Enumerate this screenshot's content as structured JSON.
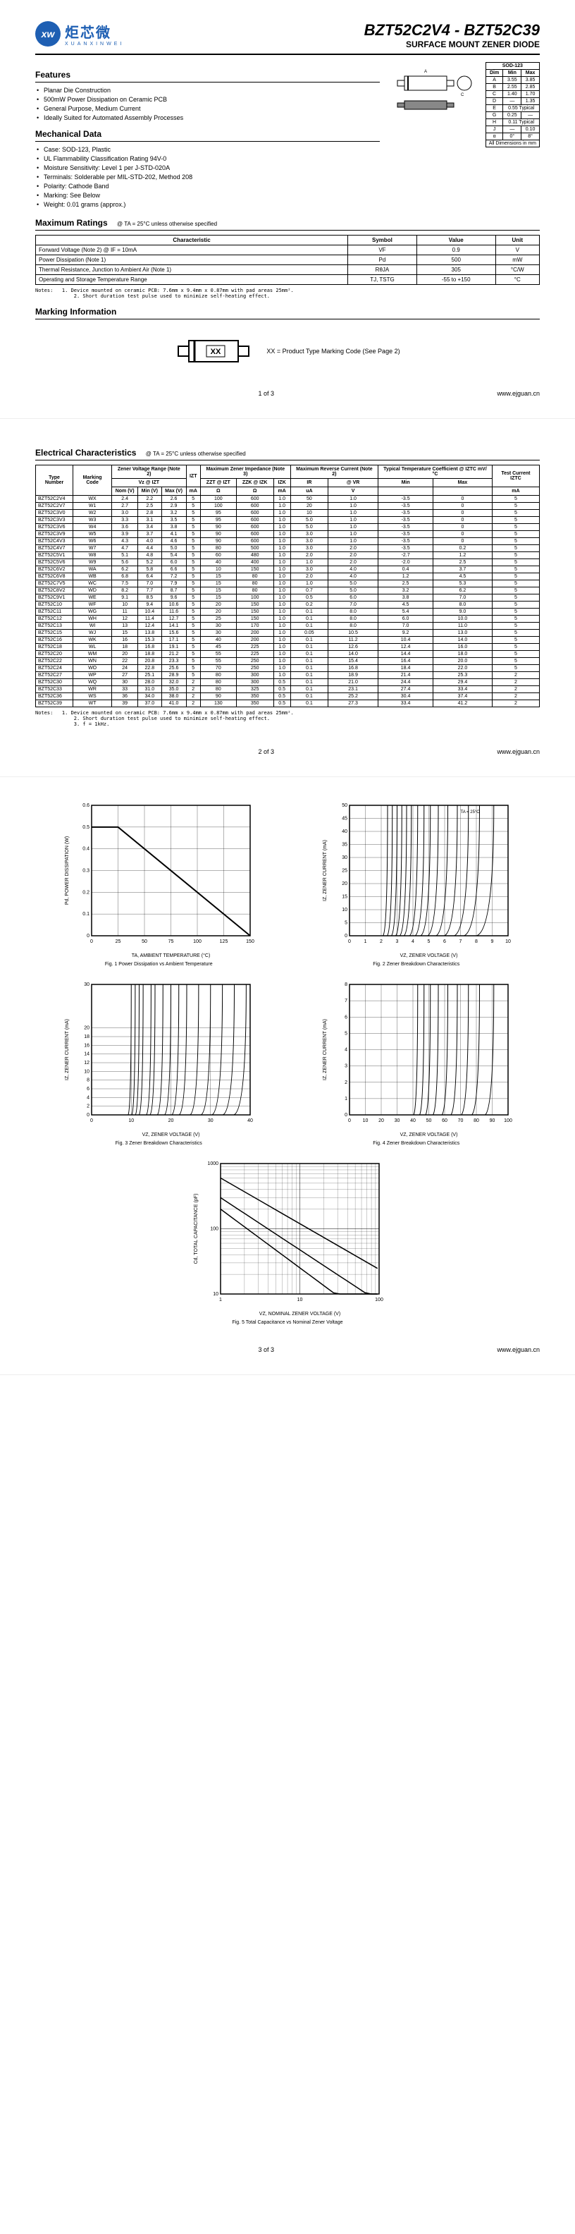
{
  "header": {
    "logo_cn": "炬芯微",
    "logo_en": "XUANXINWEI",
    "logo_mark": "xw",
    "part": "BZT52C2V4 - BZT52C39",
    "subtitle": "SURFACE MOUNT ZENER DIODE"
  },
  "sections": {
    "features": "Features",
    "mechanical": "Mechanical Data",
    "max_ratings": "Maximum Ratings",
    "marking": "Marking Information",
    "electrical": "Electrical Characteristics"
  },
  "features": [
    "Planar Die Construction",
    "500mW Power Dissipation on Ceramic PCB",
    "General Purpose, Medium Current",
    "Ideally Suited for Automated Assembly Processes"
  ],
  "mechanical": [
    "Case: SOD-123, Plastic",
    "UL Flammability Classification Rating 94V-0",
    "Moisture Sensitivity: Level 1 per J-STD-020A",
    "Terminals: Solderable per MIL-STD-202, Method 208",
    "Polarity: Cathode Band",
    "Marking: See Below",
    "Weight: 0.01 grams (approx.)"
  ],
  "sod": {
    "title": "SOD-123",
    "headers": [
      "Dim",
      "Min",
      "Max"
    ],
    "rows": [
      [
        "A",
        "3.55",
        "3.85"
      ],
      [
        "B",
        "2.55",
        "2.85"
      ],
      [
        "C",
        "1.40",
        "1.70"
      ],
      [
        "D",
        "—",
        "1.35"
      ],
      [
        "E",
        "0.55 Typical",
        ""
      ],
      [
        "G",
        "0.25",
        "—"
      ],
      [
        "H",
        "0.11 Typical",
        ""
      ],
      [
        "J",
        "—",
        "0.10"
      ],
      [
        "α",
        "0°",
        "8°"
      ]
    ],
    "footer": "All Dimensions in mm"
  },
  "max_ratings": {
    "cond": "@ TA = 25°C unless otherwise specified",
    "headers": [
      "Characteristic",
      "Symbol",
      "Value",
      "Unit"
    ],
    "rows": [
      [
        "Forward Voltage (Note 2)   @ IF = 10mA",
        "VF",
        "0.9",
        "V"
      ],
      [
        "Power Dissipation (Note 1)",
        "Pd",
        "500",
        "mW"
      ],
      [
        "Thermal Resistance, Junction to Ambient Air (Note 1)",
        "RθJA",
        "305",
        "°C/W"
      ],
      [
        "Operating and Storage Temperature Range",
        "TJ, TSTG",
        "-55 to +150",
        "°C"
      ]
    ],
    "notes": "Notes:   1. Device mounted on ceramic PCB: 7.6mm x 9.4mm x 0.87mm with pad areas 25mm².\n             2. Short duration test pulse used to minimize self-heating effect."
  },
  "marking_text": "XX = Product Type Marking Code (See Page 2)",
  "marking_code": "XX",
  "electrical": {
    "cond": "@ TA = 25°C unless otherwise specified",
    "group_headers": [
      "Type Number",
      "Marking Code",
      "Zener Voltage Range (Note 2)",
      "",
      "Maximum Zener Impedance (Note 3)",
      "",
      "",
      "Maximum Reverse Current (Note 2)",
      "",
      "Typical Temperature Coefficient @ IZTC mV/°C",
      "",
      "Test Current IZTC"
    ],
    "sub_headers": [
      "",
      "",
      "Vz @ IZT",
      "",
      "IZT",
      "ZZT @ IZT",
      "ZZK @ IZK",
      "IZK",
      "IR",
      "@ VR",
      "Min",
      "Max",
      ""
    ],
    "unit_headers": [
      "",
      "",
      "Nom (V)",
      "Min (V)",
      "Max (V)",
      "mA",
      "Ω",
      "Ω",
      "mA",
      "uA",
      "V",
      "",
      "",
      "mA"
    ],
    "rows": [
      [
        "BZT52C2V4",
        "WX",
        "2.4",
        "2.2",
        "2.6",
        "5",
        "100",
        "600",
        "1.0",
        "50",
        "1.0",
        "-3.5",
        "0",
        "5"
      ],
      [
        "BZT52C2V7",
        "W1",
        "2.7",
        "2.5",
        "2.9",
        "5",
        "100",
        "600",
        "1.0",
        "20",
        "1.0",
        "-3.5",
        "0",
        "5"
      ],
      [
        "BZT52C3V0",
        "W2",
        "3.0",
        "2.8",
        "3.2",
        "5",
        "95",
        "600",
        "1.0",
        "10",
        "1.0",
        "-3.5",
        "0",
        "5"
      ],
      [
        "BZT52C3V3",
        "W3",
        "3.3",
        "3.1",
        "3.5",
        "5",
        "95",
        "600",
        "1.0",
        "5.0",
        "1.0",
        "-3.5",
        "0",
        "5"
      ],
      [
        "BZT52C3V6",
        "W4",
        "3.6",
        "3.4",
        "3.8",
        "5",
        "90",
        "600",
        "1.0",
        "5.0",
        "1.0",
        "-3.5",
        "0",
        "5"
      ],
      [
        "BZT52C3V9",
        "W5",
        "3.9",
        "3.7",
        "4.1",
        "5",
        "90",
        "600",
        "1.0",
        "3.0",
        "1.0",
        "-3.5",
        "0",
        "5"
      ],
      [
        "BZT52C4V3",
        "W6",
        "4.3",
        "4.0",
        "4.6",
        "5",
        "90",
        "600",
        "1.0",
        "3.0",
        "1.0",
        "-3.5",
        "0",
        "5"
      ],
      [
        "BZT52C4V7",
        "W7",
        "4.7",
        "4.4",
        "5.0",
        "5",
        "80",
        "500",
        "1.0",
        "3.0",
        "2.0",
        "-3.5",
        "0.2",
        "5"
      ],
      [
        "BZT52C5V1",
        "W8",
        "5.1",
        "4.8",
        "5.4",
        "5",
        "60",
        "480",
        "1.0",
        "2.0",
        "2.0",
        "-2.7",
        "1.2",
        "5"
      ],
      [
        "BZT52C5V6",
        "W9",
        "5.6",
        "5.2",
        "6.0",
        "5",
        "40",
        "400",
        "1.0",
        "1.0",
        "2.0",
        "-2.0",
        "2.5",
        "5"
      ],
      [
        "BZT52C6V2",
        "WA",
        "6.2",
        "5.8",
        "6.6",
        "5",
        "10",
        "150",
        "1.0",
        "3.0",
        "4.0",
        "0.4",
        "3.7",
        "5"
      ],
      [
        "BZT52C6V8",
        "WB",
        "6.8",
        "6.4",
        "7.2",
        "5",
        "15",
        "80",
        "1.0",
        "2.0",
        "4.0",
        "1.2",
        "4.5",
        "5"
      ],
      [
        "BZT52C7V5",
        "WC",
        "7.5",
        "7.0",
        "7.9",
        "5",
        "15",
        "80",
        "1.0",
        "1.0",
        "5.0",
        "2.5",
        "5.3",
        "5"
      ],
      [
        "BZT52C8V2",
        "WD",
        "8.2",
        "7.7",
        "8.7",
        "5",
        "15",
        "80",
        "1.0",
        "0.7",
        "5.0",
        "3.2",
        "6.2",
        "5"
      ],
      [
        "BZT52C9V1",
        "WE",
        "9.1",
        "8.5",
        "9.6",
        "5",
        "15",
        "100",
        "1.0",
        "0.5",
        "6.0",
        "3.8",
        "7.0",
        "5"
      ],
      [
        "BZT52C10",
        "WF",
        "10",
        "9.4",
        "10.6",
        "5",
        "20",
        "150",
        "1.0",
        "0.2",
        "7.0",
        "4.5",
        "8.0",
        "5"
      ],
      [
        "BZT52C11",
        "WG",
        "11",
        "10.4",
        "11.6",
        "5",
        "20",
        "150",
        "1.0",
        "0.1",
        "8.0",
        "5.4",
        "9.0",
        "5"
      ],
      [
        "BZT52C12",
        "WH",
        "12",
        "11.4",
        "12.7",
        "5",
        "25",
        "150",
        "1.0",
        "0.1",
        "8.0",
        "6.0",
        "10.0",
        "5"
      ],
      [
        "BZT52C13",
        "WI",
        "13",
        "12.4",
        "14.1",
        "5",
        "30",
        "170",
        "1.0",
        "0.1",
        "8.0",
        "7.0",
        "11.0",
        "5"
      ],
      [
        "BZT52C15",
        "WJ",
        "15",
        "13.8",
        "15.6",
        "5",
        "30",
        "200",
        "1.0",
        "0.05",
        "10.5",
        "9.2",
        "13.0",
        "5"
      ],
      [
        "BZT52C16",
        "WK",
        "16",
        "15.3",
        "17.1",
        "5",
        "40",
        "200",
        "1.0",
        "0.1",
        "11.2",
        "10.4",
        "14.0",
        "5"
      ],
      [
        "BZT52C18",
        "WL",
        "18",
        "16.8",
        "19.1",
        "5",
        "45",
        "225",
        "1.0",
        "0.1",
        "12.6",
        "12.4",
        "16.0",
        "5"
      ],
      [
        "BZT52C20",
        "WM",
        "20",
        "18.8",
        "21.2",
        "5",
        "55",
        "225",
        "1.0",
        "0.1",
        "14.0",
        "14.4",
        "18.0",
        "5"
      ],
      [
        "BZT52C22",
        "WN",
        "22",
        "20.8",
        "23.3",
        "5",
        "55",
        "250",
        "1.0",
        "0.1",
        "15.4",
        "16.4",
        "20.0",
        "5"
      ],
      [
        "BZT52C24",
        "WO",
        "24",
        "22.8",
        "25.6",
        "5",
        "70",
        "250",
        "1.0",
        "0.1",
        "16.8",
        "18.4",
        "22.0",
        "5"
      ],
      [
        "BZT52C27",
        "WP",
        "27",
        "25.1",
        "28.9",
        "5",
        "80",
        "300",
        "1.0",
        "0.1",
        "18.9",
        "21.4",
        "25.3",
        "2"
      ],
      [
        "BZT52C30",
        "WQ",
        "30",
        "28.0",
        "32.0",
        "2",
        "80",
        "300",
        "0.5",
        "0.1",
        "21.0",
        "24.4",
        "29.4",
        "2"
      ],
      [
        "BZT52C33",
        "WR",
        "33",
        "31.0",
        "35.0",
        "2",
        "80",
        "325",
        "0.5",
        "0.1",
        "23.1",
        "27.4",
        "33.4",
        "2"
      ],
      [
        "BZT52C36",
        "WS",
        "36",
        "34.0",
        "38.0",
        "2",
        "90",
        "350",
        "0.5",
        "0.1",
        "25.2",
        "30.4",
        "37.4",
        "2"
      ],
      [
        "BZT52C39",
        "WT",
        "39",
        "37.0",
        "41.0",
        "2",
        "130",
        "350",
        "0.5",
        "0.1",
        "27.3",
        "33.4",
        "41.2",
        "2"
      ]
    ],
    "notes": "Notes:   1. Device mounted on ceramic PCB: 7.6mm x 9.4mm x 0.87mm with pad areas 25mm².\n             2. Short duration test pulse used to minimize self-heating effect.\n             3. f = 1kHz."
  },
  "charts": {
    "fig1": {
      "caption": "Fig. 1  Power Dissipation vs Ambient Temperature",
      "xlabel": "TA, AMBIENT TEMPERATURE (°C)",
      "ylabel": "Pd, POWER DISSIPATION (W)",
      "xticks": [
        0,
        25,
        50,
        75,
        100,
        125,
        150
      ],
      "yticks": [
        0,
        0.1,
        0.2,
        0.3,
        0.4,
        0.5,
        0.6
      ]
    },
    "fig2": {
      "caption": "Fig. 2  Zener Breakdown Characteristics",
      "xlabel": "VZ, ZENER VOLTAGE (V)",
      "ylabel": "IZ, ZENER CURRENT (mA)",
      "xticks": [
        0,
        1,
        2,
        3,
        4,
        5,
        6,
        7,
        8,
        9,
        10
      ],
      "yticks": [
        0,
        5,
        10,
        15,
        20,
        25,
        30,
        35,
        40,
        45,
        50
      ]
    },
    "fig3": {
      "caption": "Fig. 3  Zener Breakdown Characteristics",
      "xlabel": "VZ, ZENER VOLTAGE (V)",
      "ylabel": "IZ, ZENER CURRENT (mA)",
      "xticks": [
        0,
        10,
        20,
        30,
        40
      ],
      "yticks": [
        0,
        2,
        4,
        6,
        8,
        10,
        12,
        14,
        16,
        18,
        20,
        30
      ]
    },
    "fig4": {
      "caption": "Fig. 4  Zener Breakdown Characteristics",
      "xlabel": "VZ, ZENER VOLTAGE (V)",
      "ylabel": "IZ, ZENER CURRENT (mA)",
      "xticks": [
        0,
        10,
        20,
        30,
        40,
        50,
        60,
        70,
        80,
        90,
        100
      ],
      "yticks": [
        0,
        1,
        2,
        3,
        4,
        5,
        6,
        7,
        8
      ]
    },
    "fig5": {
      "caption": "Fig. 5  Total Capacitance vs Nominal Zener Voltage",
      "xlabel": "VZ, NOMINAL ZENER VOLTAGE (V)",
      "ylabel": "Cd, TOTAL CAPACITANCE (pF)",
      "xticks": [
        1,
        10,
        100
      ],
      "yticks": [
        10,
        100,
        1000
      ]
    }
  },
  "footer": {
    "url": "www.ejguan.cn",
    "p1": "1 of 3",
    "p2": "2 of 3",
    "p3": "3 of 3"
  }
}
